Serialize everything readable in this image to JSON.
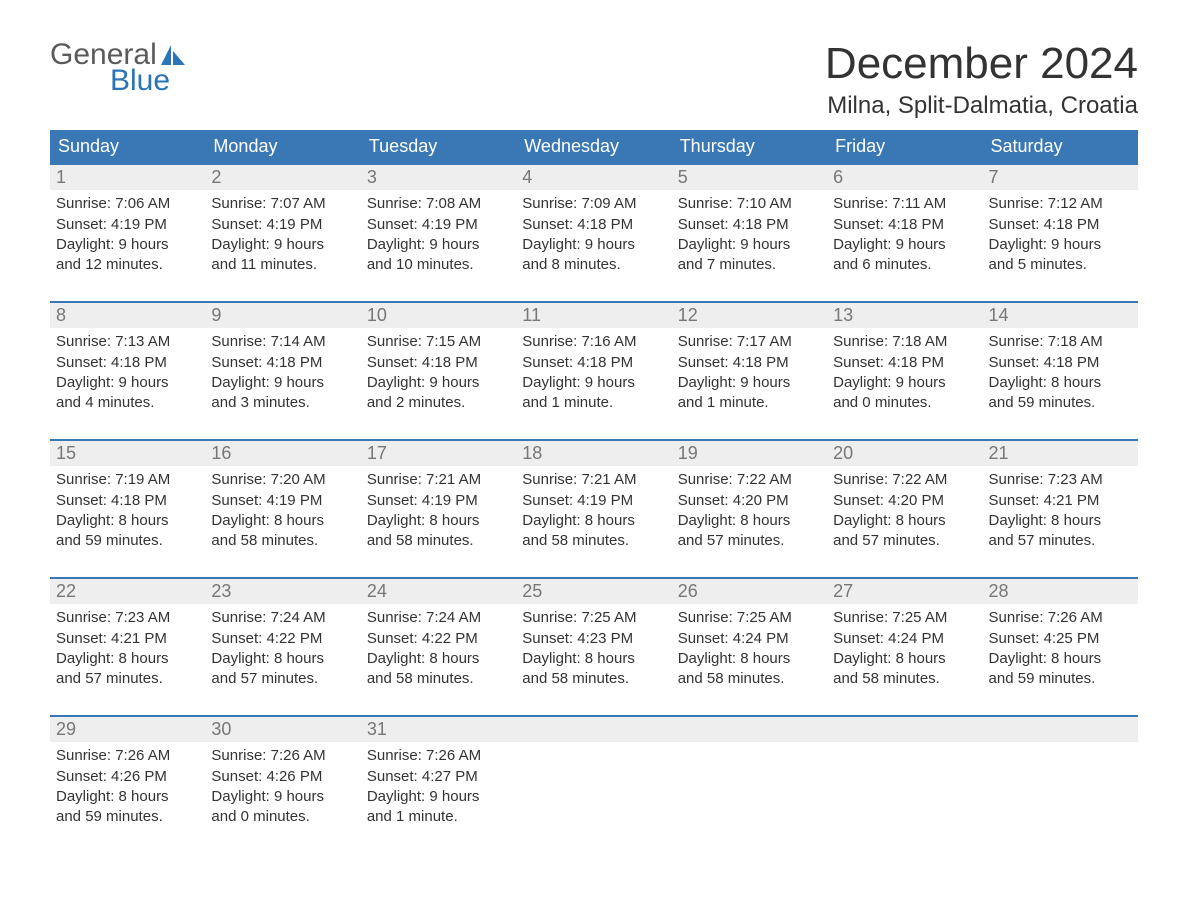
{
  "logo": {
    "top": "General",
    "bottom": "Blue",
    "sail_color": "#2b74b8",
    "text_gray": "#5a5a5a"
  },
  "title": "December 2024",
  "location": "Milna, Split-Dalmatia, Croatia",
  "colors": {
    "header_bg": "#3a78b5",
    "header_text": "#ffffff",
    "week_border": "#3a78b5",
    "daynum_bg": "#eeeeee",
    "daynum_text": "#777777",
    "body_text": "#333333",
    "page_bg": "#ffffff"
  },
  "typography": {
    "title_fontsize": 44,
    "location_fontsize": 24,
    "dow_fontsize": 18,
    "daynum_fontsize": 18,
    "body_fontsize": 15
  },
  "days_of_week": [
    "Sunday",
    "Monday",
    "Tuesday",
    "Wednesday",
    "Thursday",
    "Friday",
    "Saturday"
  ],
  "weeks": [
    [
      {
        "n": "1",
        "sunrise": "Sunrise: 7:06 AM",
        "sunset": "Sunset: 4:19 PM",
        "dl1": "Daylight: 9 hours",
        "dl2": "and 12 minutes."
      },
      {
        "n": "2",
        "sunrise": "Sunrise: 7:07 AM",
        "sunset": "Sunset: 4:19 PM",
        "dl1": "Daylight: 9 hours",
        "dl2": "and 11 minutes."
      },
      {
        "n": "3",
        "sunrise": "Sunrise: 7:08 AM",
        "sunset": "Sunset: 4:19 PM",
        "dl1": "Daylight: 9 hours",
        "dl2": "and 10 minutes."
      },
      {
        "n": "4",
        "sunrise": "Sunrise: 7:09 AM",
        "sunset": "Sunset: 4:18 PM",
        "dl1": "Daylight: 9 hours",
        "dl2": "and 8 minutes."
      },
      {
        "n": "5",
        "sunrise": "Sunrise: 7:10 AM",
        "sunset": "Sunset: 4:18 PM",
        "dl1": "Daylight: 9 hours",
        "dl2": "and 7 minutes."
      },
      {
        "n": "6",
        "sunrise": "Sunrise: 7:11 AM",
        "sunset": "Sunset: 4:18 PM",
        "dl1": "Daylight: 9 hours",
        "dl2": "and 6 minutes."
      },
      {
        "n": "7",
        "sunrise": "Sunrise: 7:12 AM",
        "sunset": "Sunset: 4:18 PM",
        "dl1": "Daylight: 9 hours",
        "dl2": "and 5 minutes."
      }
    ],
    [
      {
        "n": "8",
        "sunrise": "Sunrise: 7:13 AM",
        "sunset": "Sunset: 4:18 PM",
        "dl1": "Daylight: 9 hours",
        "dl2": "and 4 minutes."
      },
      {
        "n": "9",
        "sunrise": "Sunrise: 7:14 AM",
        "sunset": "Sunset: 4:18 PM",
        "dl1": "Daylight: 9 hours",
        "dl2": "and 3 minutes."
      },
      {
        "n": "10",
        "sunrise": "Sunrise: 7:15 AM",
        "sunset": "Sunset: 4:18 PM",
        "dl1": "Daylight: 9 hours",
        "dl2": "and 2 minutes."
      },
      {
        "n": "11",
        "sunrise": "Sunrise: 7:16 AM",
        "sunset": "Sunset: 4:18 PM",
        "dl1": "Daylight: 9 hours",
        "dl2": "and 1 minute."
      },
      {
        "n": "12",
        "sunrise": "Sunrise: 7:17 AM",
        "sunset": "Sunset: 4:18 PM",
        "dl1": "Daylight: 9 hours",
        "dl2": "and 1 minute."
      },
      {
        "n": "13",
        "sunrise": "Sunrise: 7:18 AM",
        "sunset": "Sunset: 4:18 PM",
        "dl1": "Daylight: 9 hours",
        "dl2": "and 0 minutes."
      },
      {
        "n": "14",
        "sunrise": "Sunrise: 7:18 AM",
        "sunset": "Sunset: 4:18 PM",
        "dl1": "Daylight: 8 hours",
        "dl2": "and 59 minutes."
      }
    ],
    [
      {
        "n": "15",
        "sunrise": "Sunrise: 7:19 AM",
        "sunset": "Sunset: 4:18 PM",
        "dl1": "Daylight: 8 hours",
        "dl2": "and 59 minutes."
      },
      {
        "n": "16",
        "sunrise": "Sunrise: 7:20 AM",
        "sunset": "Sunset: 4:19 PM",
        "dl1": "Daylight: 8 hours",
        "dl2": "and 58 minutes."
      },
      {
        "n": "17",
        "sunrise": "Sunrise: 7:21 AM",
        "sunset": "Sunset: 4:19 PM",
        "dl1": "Daylight: 8 hours",
        "dl2": "and 58 minutes."
      },
      {
        "n": "18",
        "sunrise": "Sunrise: 7:21 AM",
        "sunset": "Sunset: 4:19 PM",
        "dl1": "Daylight: 8 hours",
        "dl2": "and 58 minutes."
      },
      {
        "n": "19",
        "sunrise": "Sunrise: 7:22 AM",
        "sunset": "Sunset: 4:20 PM",
        "dl1": "Daylight: 8 hours",
        "dl2": "and 57 minutes."
      },
      {
        "n": "20",
        "sunrise": "Sunrise: 7:22 AM",
        "sunset": "Sunset: 4:20 PM",
        "dl1": "Daylight: 8 hours",
        "dl2": "and 57 minutes."
      },
      {
        "n": "21",
        "sunrise": "Sunrise: 7:23 AM",
        "sunset": "Sunset: 4:21 PM",
        "dl1": "Daylight: 8 hours",
        "dl2": "and 57 minutes."
      }
    ],
    [
      {
        "n": "22",
        "sunrise": "Sunrise: 7:23 AM",
        "sunset": "Sunset: 4:21 PM",
        "dl1": "Daylight: 8 hours",
        "dl2": "and 57 minutes."
      },
      {
        "n": "23",
        "sunrise": "Sunrise: 7:24 AM",
        "sunset": "Sunset: 4:22 PM",
        "dl1": "Daylight: 8 hours",
        "dl2": "and 57 minutes."
      },
      {
        "n": "24",
        "sunrise": "Sunrise: 7:24 AM",
        "sunset": "Sunset: 4:22 PM",
        "dl1": "Daylight: 8 hours",
        "dl2": "and 58 minutes."
      },
      {
        "n": "25",
        "sunrise": "Sunrise: 7:25 AM",
        "sunset": "Sunset: 4:23 PM",
        "dl1": "Daylight: 8 hours",
        "dl2": "and 58 minutes."
      },
      {
        "n": "26",
        "sunrise": "Sunrise: 7:25 AM",
        "sunset": "Sunset: 4:24 PM",
        "dl1": "Daylight: 8 hours",
        "dl2": "and 58 minutes."
      },
      {
        "n": "27",
        "sunrise": "Sunrise: 7:25 AM",
        "sunset": "Sunset: 4:24 PM",
        "dl1": "Daylight: 8 hours",
        "dl2": "and 58 minutes."
      },
      {
        "n": "28",
        "sunrise": "Sunrise: 7:26 AM",
        "sunset": "Sunset: 4:25 PM",
        "dl1": "Daylight: 8 hours",
        "dl2": "and 59 minutes."
      }
    ],
    [
      {
        "n": "29",
        "sunrise": "Sunrise: 7:26 AM",
        "sunset": "Sunset: 4:26 PM",
        "dl1": "Daylight: 8 hours",
        "dl2": "and 59 minutes."
      },
      {
        "n": "30",
        "sunrise": "Sunrise: 7:26 AM",
        "sunset": "Sunset: 4:26 PM",
        "dl1": "Daylight: 9 hours",
        "dl2": "and 0 minutes."
      },
      {
        "n": "31",
        "sunrise": "Sunrise: 7:26 AM",
        "sunset": "Sunset: 4:27 PM",
        "dl1": "Daylight: 9 hours",
        "dl2": "and 1 minute."
      },
      {
        "empty": true
      },
      {
        "empty": true
      },
      {
        "empty": true
      },
      {
        "empty": true
      }
    ]
  ]
}
